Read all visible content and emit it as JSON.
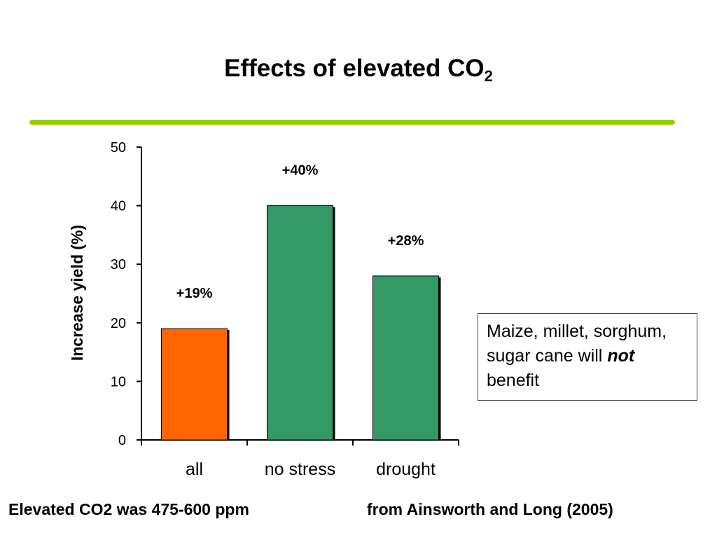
{
  "slide": {
    "title_main": "Effects of elevated CO",
    "title_sub": "2",
    "divider_color": "#99CC00"
  },
  "callout": {
    "text_before": "Maize, millet, sorghum, sugar cane will ",
    "emphasis": "not",
    "text_after": " benefit"
  },
  "footer": {
    "left": "Elevated CO2 was 475-600 ppm",
    "right": "from Ainsworth and Long (2005)"
  },
  "chart_data": {
    "type": "bar",
    "categories": [
      "all",
      "no stress",
      "drought"
    ],
    "values": [
      19,
      40,
      28
    ],
    "data_labels": [
      "+19%",
      "+40%",
      "+28%"
    ],
    "colors": [
      "#FF6600",
      "#339966",
      "#339966"
    ],
    "ylabel": "Increase yield (%)",
    "xlabel": "",
    "ylim": [
      0,
      50
    ],
    "yticks": [
      0,
      10,
      20,
      30,
      40,
      50
    ],
    "grid": false,
    "legend": "none"
  }
}
